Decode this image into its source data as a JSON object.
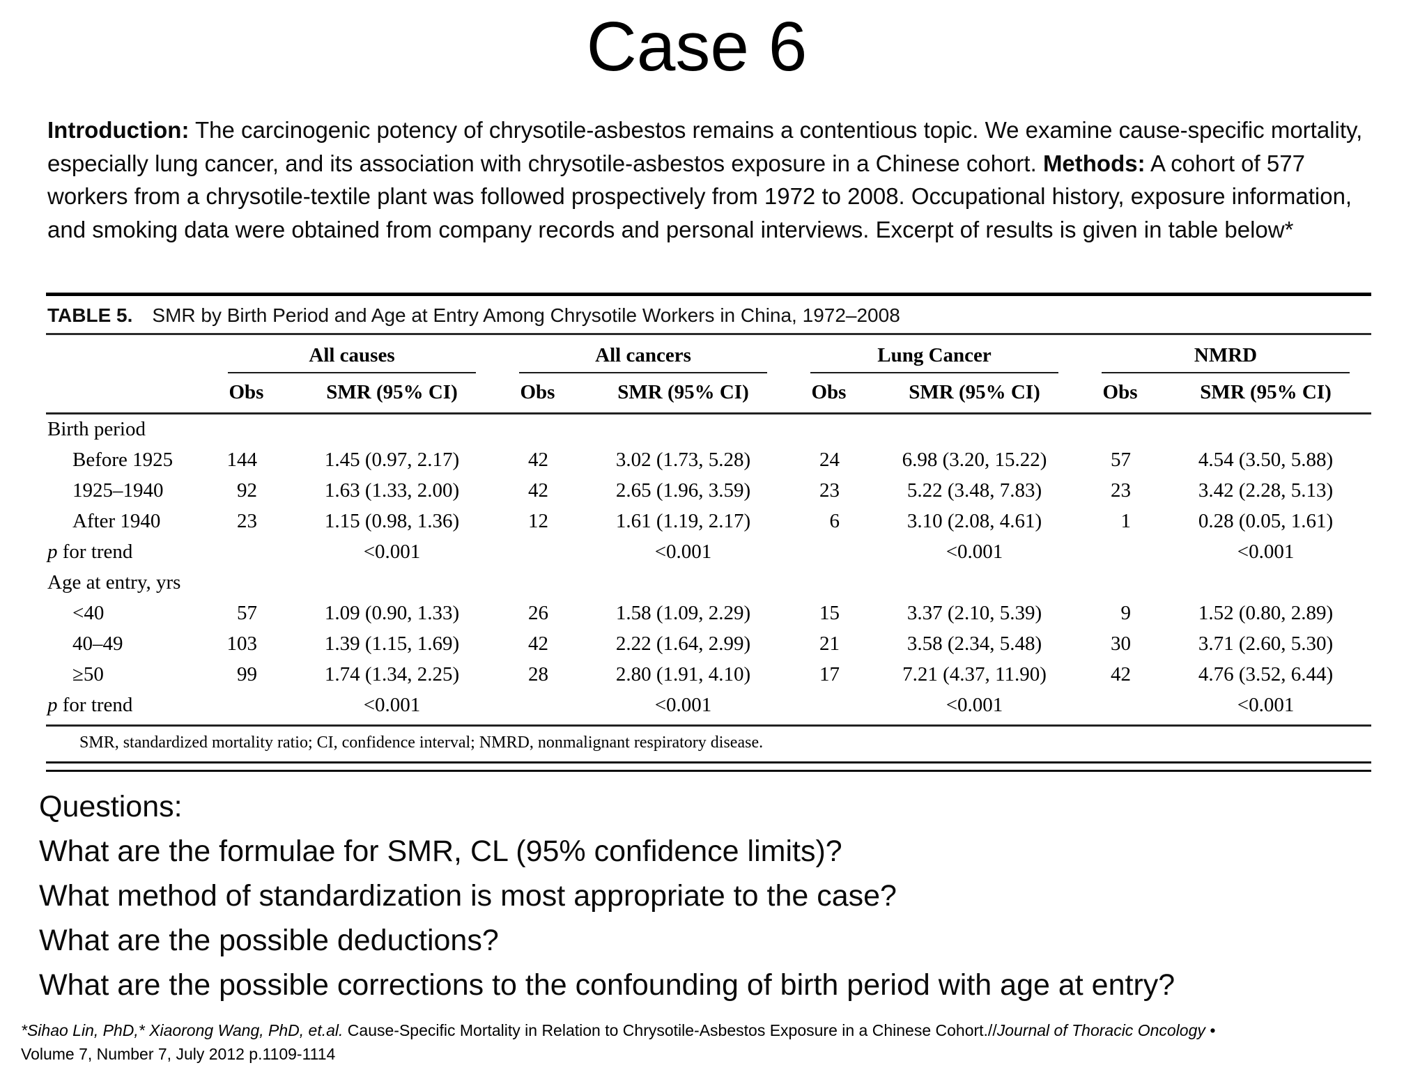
{
  "colors": {
    "background": "#ffffff",
    "text": "#000000",
    "rule": "#1a1a1a"
  },
  "slide": {
    "title": "Case 6",
    "intro": {
      "intro_label": "Introduction:",
      "intro_text": " The carcinogenic potency of chrysotile-asbestos remains a contentious topic. We examine cause-specific mortality, especially lung cancer, and its association with chrysotile-asbestos exposure in a Chinese cohort. ",
      "methods_label": "Methods:",
      "methods_text": " A cohort of 577 workers from a chrysotile-textile plant was followed prospectively from 1972 to 2008. Occupational history, exposure information, and smoking data were obtained from company records and personal interviews. Excerpt of results is given in table below*"
    },
    "questions": {
      "heading": "Questions:",
      "items": [
        "What are the formulae for SMR, CL (95% confidence limits)?",
        "What method of standardization is most appropriate to the case?",
        "What are the possible deductions?",
        "What are the possible corrections to the confounding of birth period with age at entry?"
      ]
    },
    "citation": {
      "authors_italic": "*Sihao Lin, PhD,* Xiaorong Wang, PhD, et.al.",
      "title_text": " Cause-Specific Mortality in Relation to Chrysotile-Asbestos Exposure in a Chinese Cohort.//",
      "journal_italic": "Journal of Thoracic Oncology •",
      "volume_line": "Volume 7, Number 7, July 2012 p.1109-1114"
    }
  },
  "table": {
    "caption_label": "TABLE 5.",
    "caption_text": "SMR by Birth Period and Age at Entry Among Chrysotile Workers in China, 1972–2008",
    "column_groups": [
      "All causes",
      "All cancers",
      "Lung Cancer",
      "NMRD"
    ],
    "sub_headers": {
      "obs": "Obs",
      "smr": "SMR (95% CI)"
    },
    "sections": [
      {
        "name": "Birth period",
        "rows": [
          {
            "label": "Before 1925",
            "cells": [
              [
                "144",
                "1.45 (0.97, 2.17)"
              ],
              [
                "42",
                "3.02 (1.73, 5.28)"
              ],
              [
                "24",
                "6.98 (3.20, 15.22)"
              ],
              [
                "57",
                "4.54 (3.50, 5.88)"
              ]
            ]
          },
          {
            "label": "1925–1940",
            "cells": [
              [
                "92",
                "1.63 (1.33, 2.00)"
              ],
              [
                "42",
                "2.65 (1.96, 3.59)"
              ],
              [
                "23",
                "5.22 (3.48, 7.83)"
              ],
              [
                "23",
                "3.42 (2.28, 5.13)"
              ]
            ]
          },
          {
            "label": "After 1940",
            "cells": [
              [
                "23",
                "1.15 (0.98, 1.36)"
              ],
              [
                "12",
                "1.61 (1.19, 2.17)"
              ],
              [
                "6",
                "3.10 (2.08, 4.61)"
              ],
              [
                "1",
                "0.28 (0.05, 1.61)"
              ]
            ]
          }
        ],
        "p_label": "p for trend",
        "p_values": [
          "<0.001",
          "<0.001",
          "<0.001",
          "<0.001"
        ]
      },
      {
        "name": "Age at entry, yrs",
        "rows": [
          {
            "label": "<40",
            "cells": [
              [
                "57",
                "1.09 (0.90, 1.33)"
              ],
              [
                "26",
                "1.58 (1.09, 2.29)"
              ],
              [
                "15",
                "3.37 (2.10, 5.39)"
              ],
              [
                "9",
                "1.52 (0.80, 2.89)"
              ]
            ]
          },
          {
            "label": "40–49",
            "cells": [
              [
                "103",
                "1.39 (1.15, 1.69)"
              ],
              [
                "42",
                "2.22 (1.64, 2.99)"
              ],
              [
                "21",
                "3.58 (2.34, 5.48)"
              ],
              [
                "30",
                "3.71 (2.60, 5.30)"
              ]
            ]
          },
          {
            "label": "≥50",
            "cells": [
              [
                "99",
                "1.74 (1.34, 2.25)"
              ],
              [
                "28",
                "2.80 (1.91, 4.10)"
              ],
              [
                "17",
                "7.21 (4.37, 11.90)"
              ],
              [
                "42",
                "4.76 (3.52, 6.44)"
              ]
            ]
          }
        ],
        "p_label": "p for trend",
        "p_values": [
          "<0.001",
          "<0.001",
          "<0.001",
          "<0.001"
        ]
      }
    ],
    "footnote": "SMR, standardized mortality ratio; CI, confidence interval; NMRD, nonmalignant respiratory disease."
  }
}
